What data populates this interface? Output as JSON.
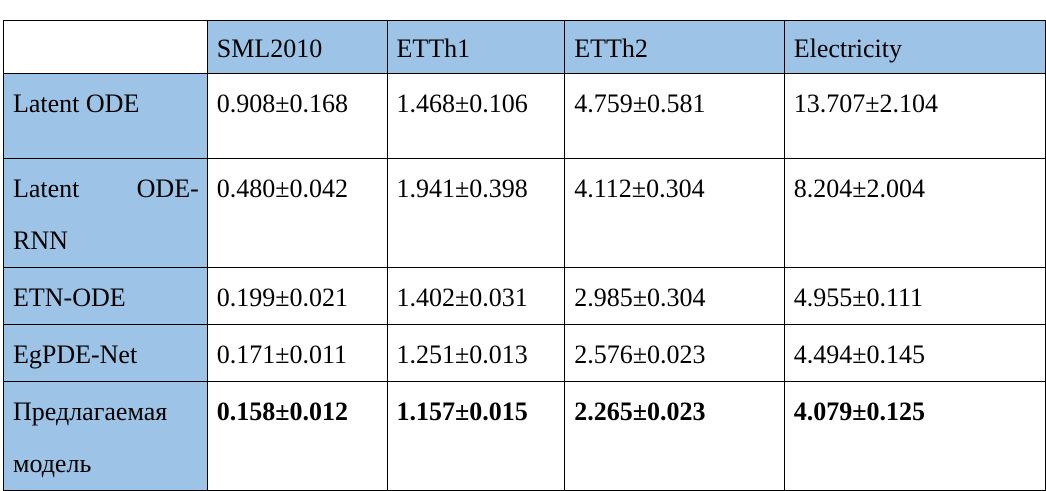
{
  "table": {
    "columns": [
      "",
      "SML2010",
      "ETTh1",
      "ETTh2",
      "Electricity"
    ],
    "rows": [
      {
        "method": "Latent ODE",
        "values": [
          "0.908±0.168",
          "1.468±0.106",
          "4.759±0.581",
          "13.707±2.104"
        ]
      },
      {
        "method_line1": "Latent ODE-",
        "method_line2": "RNN",
        "values": [
          "0.480±0.042",
          "1.941±0.398",
          "4.112±0.304",
          "8.204±2.004"
        ]
      },
      {
        "method": "ETN-ODE",
        "values": [
          "0.199±0.021",
          "1.402±0.031",
          "2.985±0.304",
          "4.955±0.111"
        ]
      },
      {
        "method": "EgPDE-Net",
        "values": [
          "0.171±0.011",
          "1.251±0.013",
          "2.576±0.023",
          "4.494±0.145"
        ]
      },
      {
        "method_line1": "Предлагаемая",
        "method_line2": "модель",
        "values": [
          "0.158±0.012",
          "1.157±0.015",
          "2.265±0.023",
          "4.079±0.125"
        ],
        "bold": true
      }
    ]
  },
  "colors": {
    "header_fill": "#9dc3e6",
    "border": "#000000",
    "text": "#000000"
  }
}
